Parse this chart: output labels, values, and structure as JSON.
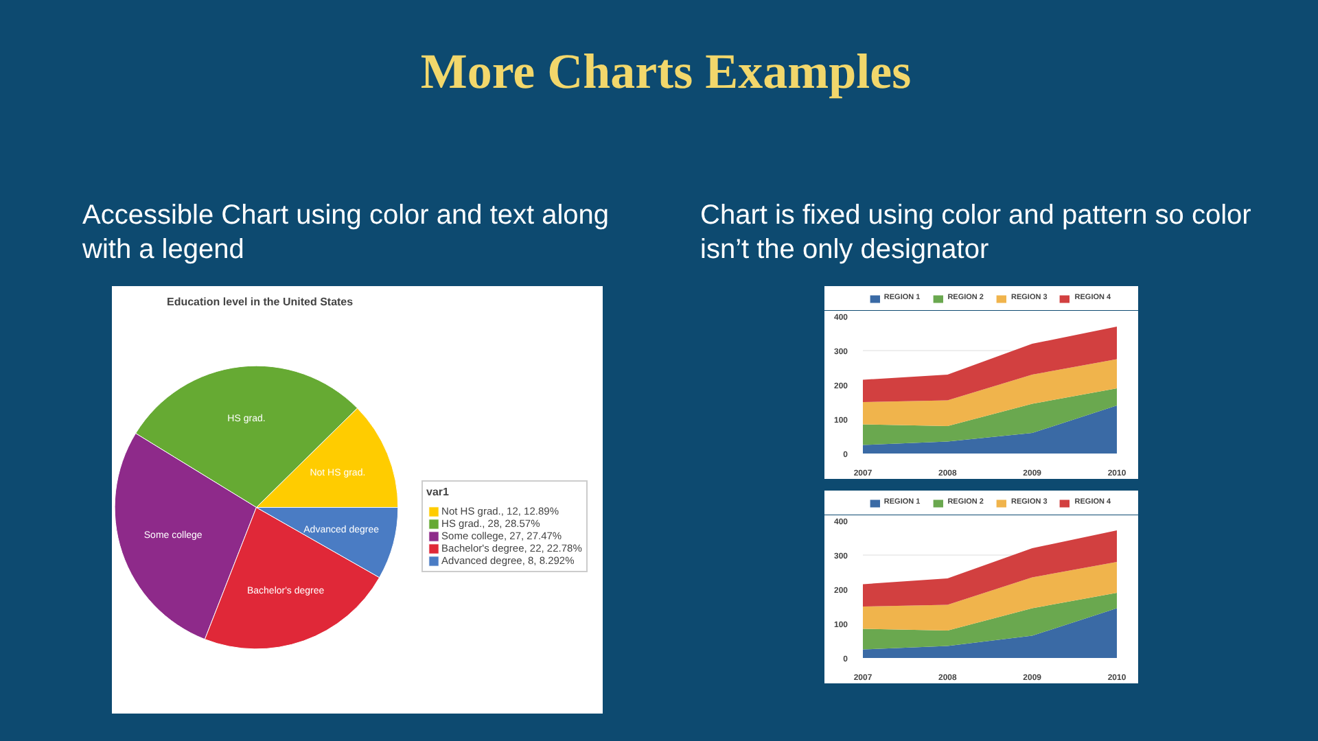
{
  "chart_data": [
    {
      "type": "pie",
      "title": "Education level in the United States",
      "legend_title": "var1",
      "legend": "right",
      "annotations": [
        "More Charts Examples",
        "Accessible Chart using color and text along with a legend",
        "Not HS grad.",
        "HS grad.",
        "Some college",
        "Bachelor's degree",
        "Advanced degree"
      ],
      "categories": [
        "Not HS grad., 12, 12.89%",
        "HS grad., 28, 28.57%",
        "Some college, 27, 27.47%",
        "Bachelor's degree, 22, 22.78%",
        "Advanced degree, 8, 8.292%"
      ],
      "values": [
        12,
        28,
        27,
        22,
        8
      ],
      "colors": [
        "#ffcc00",
        "#66aa33",
        "#8e2a8a",
        "#e02838",
        "#4a7cc4"
      ]
    },
    {
      "type": "area",
      "stacked": true,
      "legend": "top",
      "grid": "y",
      "annotations": [
        "Chart is fixed using color and pattern so color isn’t the only designator"
      ],
      "categories": [
        "2007",
        "2008",
        "2009",
        "2010"
      ],
      "ylim": [
        0,
        400
      ],
      "yticks": [
        0,
        100,
        200,
        300,
        400
      ],
      "series": [
        {
          "name": "REGION 1",
          "color": "#3a6aa5",
          "values": [
            25,
            35,
            60,
            140
          ]
        },
        {
          "name": "REGION 2",
          "color": "#6aa84f",
          "values": [
            60,
            45,
            85,
            50
          ]
        },
        {
          "name": "REGION 3",
          "color": "#f0b44c",
          "values": [
            65,
            75,
            85,
            85
          ]
        },
        {
          "name": "REGION 4",
          "color": "#d24040",
          "values": [
            65,
            75,
            90,
            95
          ]
        }
      ]
    },
    {
      "type": "area",
      "stacked": true,
      "legend": "top",
      "grid": "y",
      "categories": [
        "2007",
        "2008",
        "2009",
        "2010"
      ],
      "ylim": [
        0,
        400
      ],
      "yticks": [
        0,
        100,
        200,
        300,
        400
      ],
      "series": [
        {
          "name": "REGION 1",
          "color": "#3a6aa5",
          "values": [
            25,
            35,
            65,
            145
          ]
        },
        {
          "name": "REGION 2",
          "color": "#6aa84f",
          "values": [
            60,
            45,
            80,
            45
          ]
        },
        {
          "name": "REGION 3",
          "color": "#f0b44c",
          "values": [
            65,
            75,
            90,
            90
          ]
        },
        {
          "name": "REGION 4",
          "color": "#d24040",
          "values": [
            65,
            77,
            85,
            92
          ]
        }
      ]
    }
  ]
}
